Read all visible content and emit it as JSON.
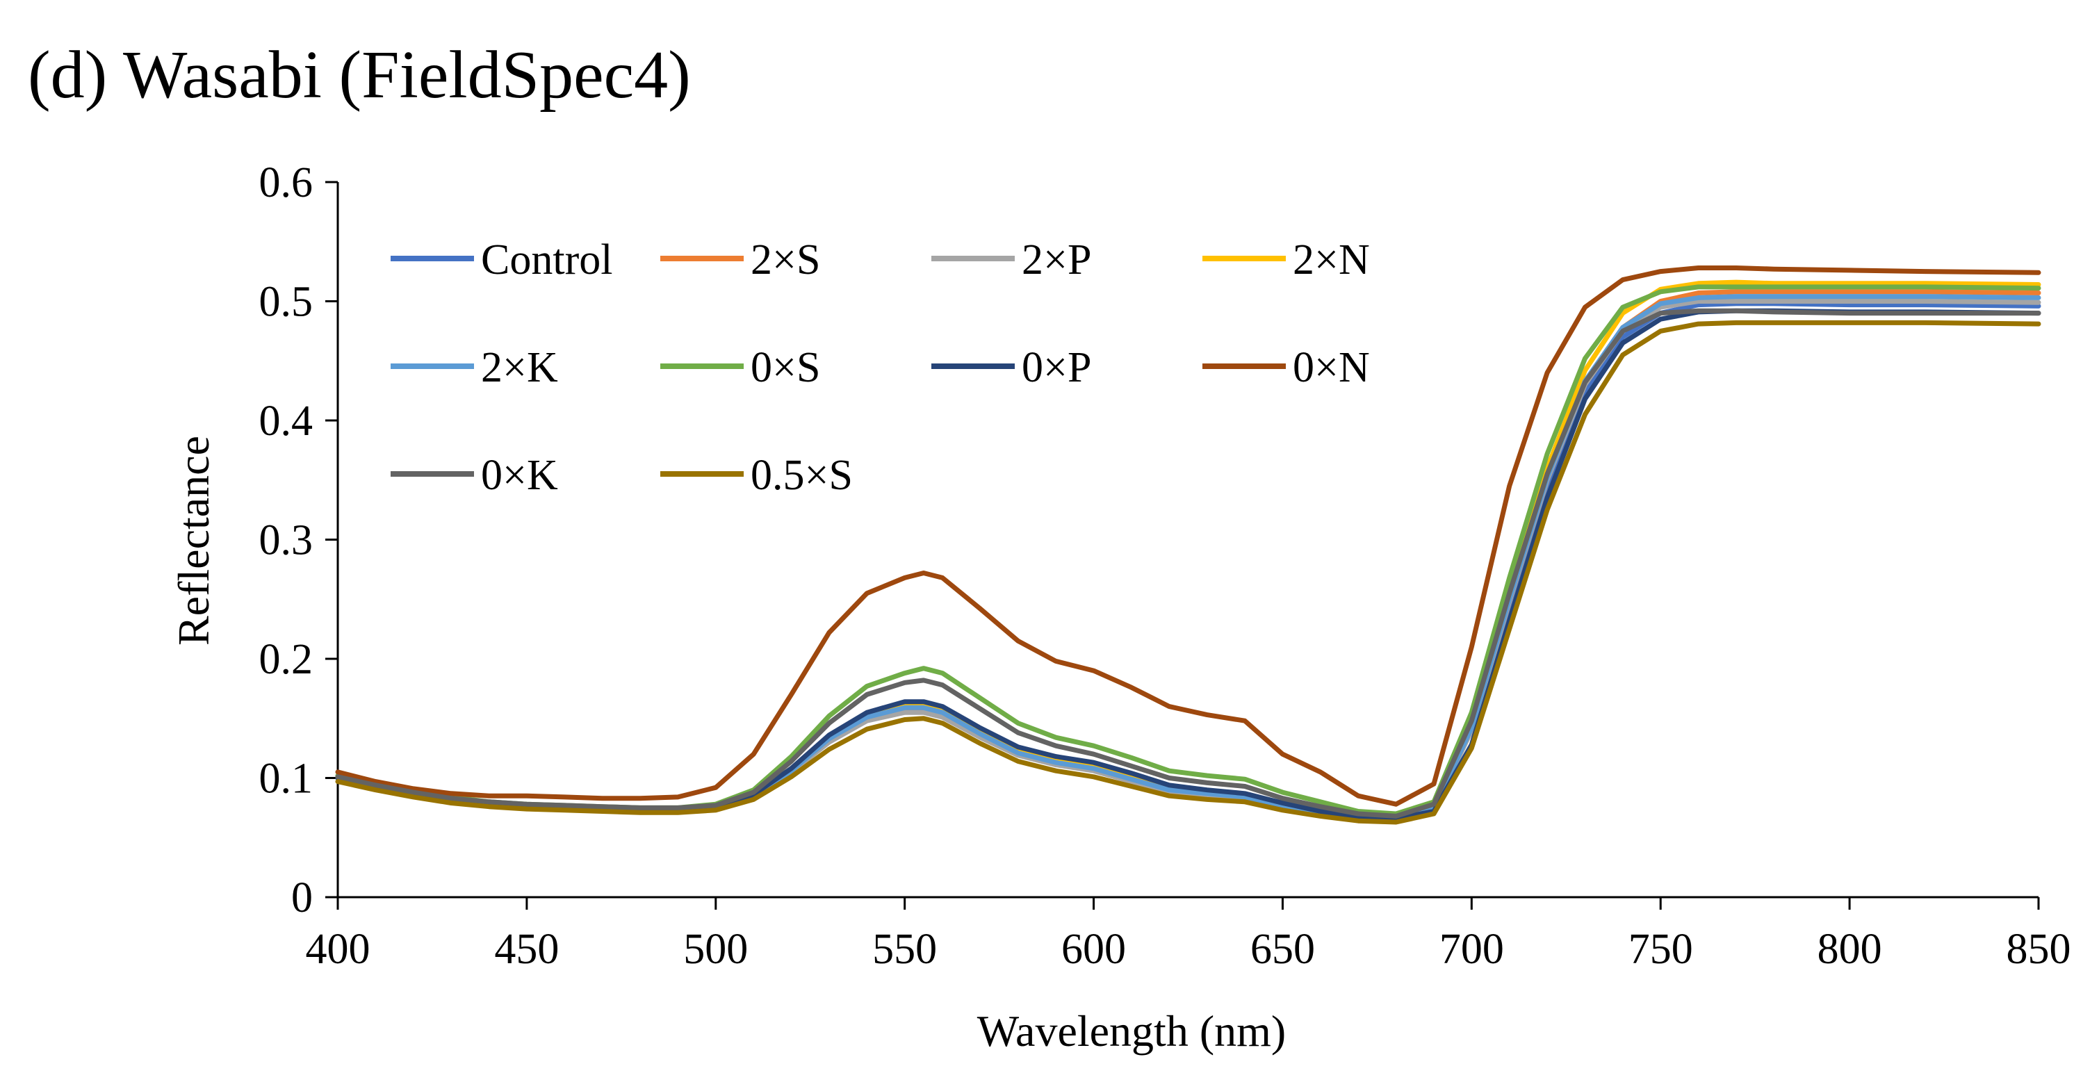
{
  "chart_data": {
    "type": "line",
    "title": "(d) Wasabi (FieldSpec4)",
    "xlabel": "Wavelength (nm)",
    "ylabel": "Reflectance",
    "xlim": [
      400,
      850
    ],
    "ylim": [
      0,
      0.6
    ],
    "xticks": [
      "400",
      "450",
      "500",
      "550",
      "600",
      "650",
      "700",
      "750",
      "800",
      "850"
    ],
    "yticks": [
      "0",
      "0.1",
      "0.2",
      "0.3",
      "0.4",
      "0.5",
      "0.6"
    ],
    "legend_position": "top-left",
    "x": [
      400,
      410,
      420,
      430,
      440,
      450,
      460,
      470,
      480,
      490,
      500,
      510,
      520,
      530,
      540,
      550,
      555,
      560,
      570,
      580,
      590,
      600,
      610,
      620,
      630,
      640,
      650,
      660,
      670,
      680,
      690,
      700,
      710,
      720,
      730,
      740,
      750,
      760,
      770,
      780,
      800,
      820,
      850
    ],
    "series": [
      {
        "name": "Control",
        "color": "#4472C4",
        "values": [
          0.1,
          0.093,
          0.087,
          0.082,
          0.079,
          0.077,
          0.076,
          0.075,
          0.074,
          0.074,
          0.076,
          0.086,
          0.108,
          0.135,
          0.154,
          0.163,
          0.163,
          0.158,
          0.14,
          0.124,
          0.116,
          0.111,
          0.102,
          0.092,
          0.088,
          0.086,
          0.078,
          0.072,
          0.067,
          0.067,
          0.075,
          0.14,
          0.245,
          0.345,
          0.425,
          0.47,
          0.49,
          0.497,
          0.498,
          0.498,
          0.497,
          0.497,
          0.496
        ]
      },
      {
        "name": "2×S",
        "color": "#ED7D31",
        "values": [
          0.1,
          0.093,
          0.087,
          0.082,
          0.079,
          0.077,
          0.076,
          0.075,
          0.074,
          0.074,
          0.076,
          0.085,
          0.106,
          0.132,
          0.15,
          0.158,
          0.158,
          0.154,
          0.137,
          0.121,
          0.113,
          0.108,
          0.099,
          0.09,
          0.086,
          0.083,
          0.076,
          0.07,
          0.066,
          0.066,
          0.074,
          0.14,
          0.248,
          0.35,
          0.432,
          0.478,
          0.5,
          0.507,
          0.508,
          0.508,
          0.508,
          0.508,
          0.507
        ]
      },
      {
        "name": "2×P",
        "color": "#A5A5A5",
        "values": [
          0.1,
          0.093,
          0.087,
          0.082,
          0.079,
          0.077,
          0.076,
          0.075,
          0.074,
          0.074,
          0.076,
          0.085,
          0.105,
          0.13,
          0.148,
          0.155,
          0.155,
          0.151,
          0.134,
          0.119,
          0.111,
          0.106,
          0.097,
          0.088,
          0.084,
          0.082,
          0.075,
          0.069,
          0.065,
          0.065,
          0.073,
          0.14,
          0.248,
          0.35,
          0.43,
          0.475,
          0.495,
          0.5,
          0.5,
          0.5,
          0.5,
          0.5,
          0.499
        ]
      },
      {
        "name": "2×N",
        "color": "#FFC000",
        "values": [
          0.1,
          0.093,
          0.087,
          0.082,
          0.079,
          0.077,
          0.076,
          0.075,
          0.074,
          0.074,
          0.076,
          0.086,
          0.108,
          0.134,
          0.153,
          0.161,
          0.161,
          0.157,
          0.139,
          0.123,
          0.115,
          0.11,
          0.101,
          0.092,
          0.089,
          0.086,
          0.078,
          0.072,
          0.067,
          0.067,
          0.076,
          0.145,
          0.255,
          0.36,
          0.442,
          0.49,
          0.51,
          0.515,
          0.516,
          0.515,
          0.515,
          0.515,
          0.514
        ]
      },
      {
        "name": "2×K",
        "color": "#5B9BD5",
        "values": [
          0.1,
          0.093,
          0.087,
          0.082,
          0.079,
          0.077,
          0.076,
          0.075,
          0.074,
          0.074,
          0.076,
          0.085,
          0.106,
          0.133,
          0.151,
          0.159,
          0.159,
          0.155,
          0.137,
          0.121,
          0.113,
          0.108,
          0.099,
          0.09,
          0.087,
          0.084,
          0.077,
          0.071,
          0.066,
          0.066,
          0.074,
          0.142,
          0.25,
          0.352,
          0.433,
          0.478,
          0.498,
          0.503,
          0.504,
          0.504,
          0.504,
          0.504,
          0.503
        ]
      },
      {
        "name": "0×S",
        "color": "#70AD47",
        "values": [
          0.102,
          0.095,
          0.089,
          0.084,
          0.08,
          0.078,
          0.077,
          0.076,
          0.075,
          0.075,
          0.078,
          0.09,
          0.118,
          0.152,
          0.177,
          0.188,
          0.192,
          0.188,
          0.167,
          0.146,
          0.134,
          0.127,
          0.117,
          0.106,
          0.102,
          0.099,
          0.088,
          0.08,
          0.072,
          0.07,
          0.08,
          0.155,
          0.268,
          0.372,
          0.452,
          0.495,
          0.508,
          0.512,
          0.512,
          0.512,
          0.512,
          0.512,
          0.511
        ]
      },
      {
        "name": "0×P",
        "color": "#264478",
        "values": [
          0.1,
          0.093,
          0.087,
          0.082,
          0.079,
          0.077,
          0.076,
          0.075,
          0.074,
          0.074,
          0.076,
          0.086,
          0.108,
          0.136,
          0.155,
          0.164,
          0.164,
          0.16,
          0.142,
          0.126,
          0.118,
          0.113,
          0.104,
          0.094,
          0.09,
          0.087,
          0.079,
          0.072,
          0.067,
          0.066,
          0.072,
          0.128,
          0.232,
          0.335,
          0.418,
          0.465,
          0.485,
          0.491,
          0.492,
          0.492,
          0.491,
          0.491,
          0.49
        ]
      },
      {
        "name": "0×N",
        "color": "#9E480E",
        "values": [
          0.105,
          0.097,
          0.091,
          0.087,
          0.085,
          0.085,
          0.084,
          0.083,
          0.083,
          0.084,
          0.092,
          0.12,
          0.17,
          0.222,
          0.255,
          0.268,
          0.272,
          0.268,
          0.242,
          0.215,
          0.198,
          0.19,
          0.176,
          0.16,
          0.153,
          0.148,
          0.12,
          0.105,
          0.085,
          0.078,
          0.095,
          0.21,
          0.345,
          0.44,
          0.495,
          0.518,
          0.525,
          0.528,
          0.528,
          0.527,
          0.526,
          0.525,
          0.524
        ]
      },
      {
        "name": "0×K",
        "color": "#636363",
        "values": [
          0.101,
          0.094,
          0.088,
          0.083,
          0.08,
          0.078,
          0.077,
          0.076,
          0.075,
          0.075,
          0.077,
          0.088,
          0.114,
          0.146,
          0.17,
          0.18,
          0.182,
          0.178,
          0.158,
          0.138,
          0.127,
          0.12,
          0.11,
          0.1,
          0.096,
          0.093,
          0.083,
          0.076,
          0.07,
          0.068,
          0.078,
          0.148,
          0.255,
          0.355,
          0.432,
          0.475,
          0.49,
          0.492,
          0.492,
          0.491,
          0.49,
          0.49,
          0.49
        ]
      },
      {
        "name": "0.5×S",
        "color": "#997300",
        "values": [
          0.097,
          0.09,
          0.084,
          0.079,
          0.076,
          0.074,
          0.073,
          0.072,
          0.071,
          0.071,
          0.073,
          0.082,
          0.101,
          0.124,
          0.141,
          0.149,
          0.15,
          0.146,
          0.129,
          0.114,
          0.106,
          0.101,
          0.093,
          0.085,
          0.082,
          0.08,
          0.073,
          0.068,
          0.064,
          0.063,
          0.07,
          0.125,
          0.225,
          0.325,
          0.405,
          0.455,
          0.475,
          0.481,
          0.482,
          0.482,
          0.482,
          0.482,
          0.481
        ]
      }
    ]
  }
}
